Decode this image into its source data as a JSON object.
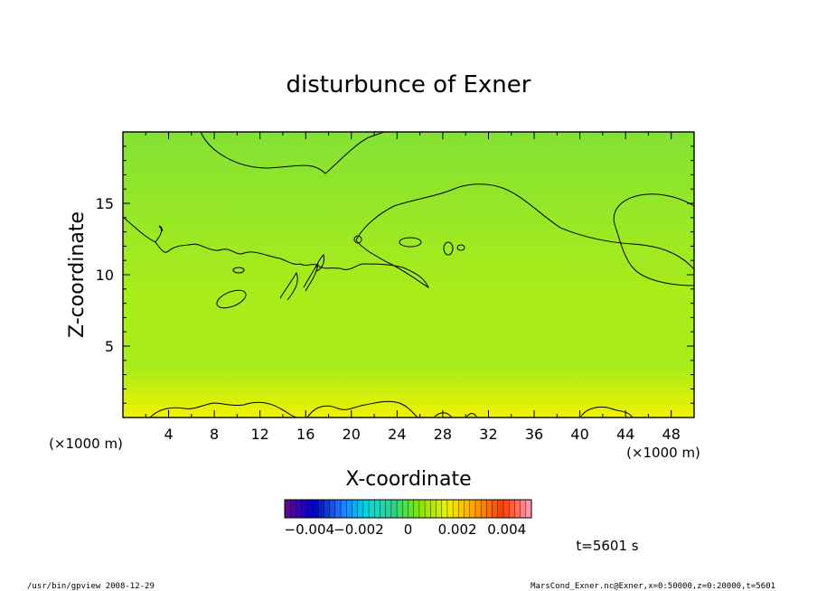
{
  "chart_data": {
    "type": "heatmap",
    "title": "disturbunce of Exner",
    "xlabel": "X-coordinate",
    "ylabel": "Z-coordinate",
    "x_unit_left": "(×1000 m)",
    "x_unit_right": "(×1000 m)",
    "xlim": [
      0,
      50
    ],
    "ylim": [
      0,
      20
    ],
    "x_ticks": [
      "4",
      "8",
      "12",
      "16",
      "20",
      "24",
      "28",
      "32",
      "36",
      "40",
      "44",
      "48"
    ],
    "x_tick_values": [
      4,
      8,
      12,
      16,
      20,
      24,
      28,
      32,
      36,
      40,
      44,
      48
    ],
    "y_ticks": [
      "5",
      "10",
      "15"
    ],
    "y_tick_values": [
      5,
      10,
      15
    ],
    "colorbar": {
      "range": [
        -0.005,
        0.005
      ],
      "tick_labels": [
        "−0.004",
        "−0.002",
        "0",
        "0.002",
        "0.004"
      ],
      "tick_values": [
        -0.004,
        -0.002,
        0,
        0.002,
        0.004
      ],
      "colors": [
        "#5a0a8c",
        "#0000c8",
        "#1e78ff",
        "#00dcdc",
        "#32d282",
        "#8ce600",
        "#f0f000",
        "#ffa000",
        "#ff3c00",
        "#ff96aa"
      ]
    },
    "field_colors": {
      "top": "#84e234",
      "middle": "#a8ec1a",
      "bottom": "#f2f200"
    },
    "contour_level": 0,
    "time_label": "t=5601 s"
  },
  "footer": {
    "left": "/usr/bin/gpview   2008-12-29",
    "right": "MarsCond_Exner.nc@Exner,x=0:50000,z=0:20000,t=5601"
  }
}
